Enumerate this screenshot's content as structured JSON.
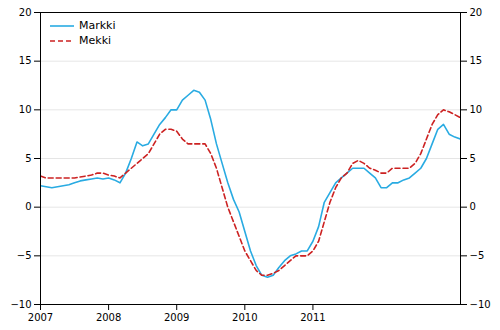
{
  "chart_data": {
    "type": "line",
    "categories": [
      "2007",
      null,
      null,
      null,
      null,
      null,
      null,
      null,
      null,
      null,
      null,
      null,
      "2008",
      null,
      null,
      null,
      null,
      null,
      null,
      null,
      null,
      null,
      null,
      null,
      "2009",
      null,
      null,
      null,
      null,
      null,
      null,
      null,
      null,
      null,
      null,
      null,
      "2010",
      null,
      null,
      null,
      null,
      null,
      null,
      null,
      null,
      null,
      null,
      null,
      "2011",
      null,
      null,
      null,
      null,
      null,
      null,
      null,
      null,
      null,
      null,
      null,
      null,
      null,
      null,
      null,
      null,
      null,
      null,
      null,
      null,
      null,
      null,
      null,
      null,
      null,
      null
    ],
    "series": [
      {
        "name": "Markki",
        "color": "#29ABE2",
        "line_style": "solid",
        "values": [
          2.2,
          2.1,
          2.0,
          2.1,
          2.2,
          2.3,
          2.5,
          2.7,
          2.8,
          2.9,
          3.0,
          2.9,
          3.0,
          2.8,
          2.5,
          3.5,
          5.0,
          6.7,
          6.3,
          6.5,
          7.5,
          8.5,
          9.2,
          10.0,
          10.0,
          11.0,
          11.5,
          12.0,
          11.8,
          11.0,
          9.0,
          6.5,
          4.5,
          2.5,
          0.8,
          -0.5,
          -2.5,
          -4.5,
          -6.0,
          -7.0,
          -7.2,
          -7.0,
          -6.2,
          -5.5,
          -5.0,
          -4.8,
          -4.5,
          -4.5,
          -3.5,
          -2.0,
          0.5,
          1.5,
          2.5,
          3.0,
          3.5,
          4.0,
          4.0,
          4.0,
          3.5,
          3.0,
          2.0,
          2.0,
          2.5,
          2.5,
          2.8,
          3.0,
          3.5,
          4.0,
          5.0,
          6.5,
          8.0,
          8.5,
          7.5,
          7.2,
          7.0
        ]
      },
      {
        "name": "Mekki",
        "color": "#CC2222",
        "line_style": "dashed",
        "values": [
          3.2,
          3.0,
          3.0,
          3.0,
          3.0,
          3.0,
          3.0,
          3.1,
          3.2,
          3.3,
          3.5,
          3.5,
          3.3,
          3.2,
          3.0,
          3.5,
          4.0,
          4.5,
          5.0,
          5.5,
          6.5,
          7.5,
          8.0,
          8.0,
          7.8,
          7.0,
          6.5,
          6.5,
          6.5,
          6.5,
          5.5,
          4.0,
          2.0,
          0.0,
          -1.5,
          -3.0,
          -4.5,
          -5.5,
          -6.5,
          -7.0,
          -7.0,
          -6.8,
          -6.5,
          -6.0,
          -5.5,
          -5.0,
          -5.0,
          -5.0,
          -4.5,
          -3.5,
          -1.5,
          0.5,
          2.0,
          3.0,
          3.5,
          4.5,
          4.8,
          4.5,
          4.0,
          3.8,
          3.5,
          3.5,
          4.0,
          4.0,
          4.0,
          4.0,
          4.5,
          5.5,
          7.0,
          8.5,
          9.5,
          10.0,
          9.8,
          9.5,
          9.2
        ]
      }
    ],
    "ylim": [
      -10,
      20
    ],
    "yticks": [
      -10,
      -5,
      0,
      5,
      10,
      15,
      20
    ],
    "grid": true,
    "legend": "upper left"
  }
}
